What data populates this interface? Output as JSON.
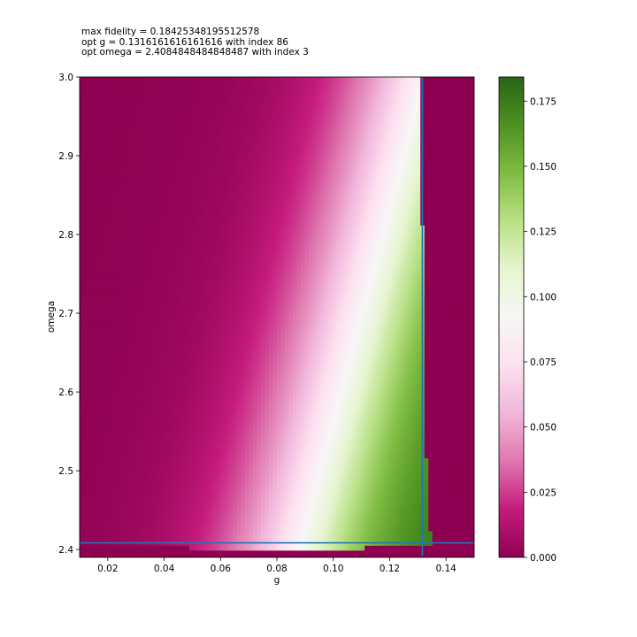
{
  "title_lines": [
    "max fidelity = 0.18425348195512578",
    "opt g = 0.1316161616161616 with index 86",
    "opt omega = 2.4084848484848487 with index 3"
  ],
  "chart_data": {
    "type": "heatmap",
    "xlabel": "g",
    "ylabel": "omega",
    "xlim": [
      0.01,
      0.15
    ],
    "ylim": [
      2.39,
      3.0
    ],
    "x_ticks": [
      0.02,
      0.04,
      0.06,
      0.08,
      0.1,
      0.12,
      0.14
    ],
    "x_tick_labels": [
      "0.02",
      "0.04",
      "0.06",
      "0.08",
      "0.10",
      "0.12",
      "0.14"
    ],
    "y_ticks": [
      2.4,
      2.5,
      2.6,
      2.7,
      2.8,
      2.9,
      3.0
    ],
    "y_tick_labels": [
      "2.4",
      "2.5",
      "2.6",
      "2.7",
      "2.8",
      "2.9",
      "3.0"
    ],
    "colorbar": {
      "colormap": "PiYG",
      "range": [
        0,
        0.18425348195512578
      ],
      "ticks": [
        0,
        0.025,
        0.05,
        0.075,
        0.1,
        0.125,
        0.15,
        0.175
      ],
      "tick_labels": [
        "0.000",
        "0.025",
        "0.050",
        "0.075",
        "0.100",
        "0.125",
        "0.150",
        "0.175"
      ]
    },
    "max_fidelity": 0.18425348195512578,
    "optimum": {
      "g": 0.1316161616161616,
      "omega": 2.4084848484848487,
      "g_index": 86,
      "omega_index": 3
    },
    "crosshair_color": "#1f77b4"
  }
}
